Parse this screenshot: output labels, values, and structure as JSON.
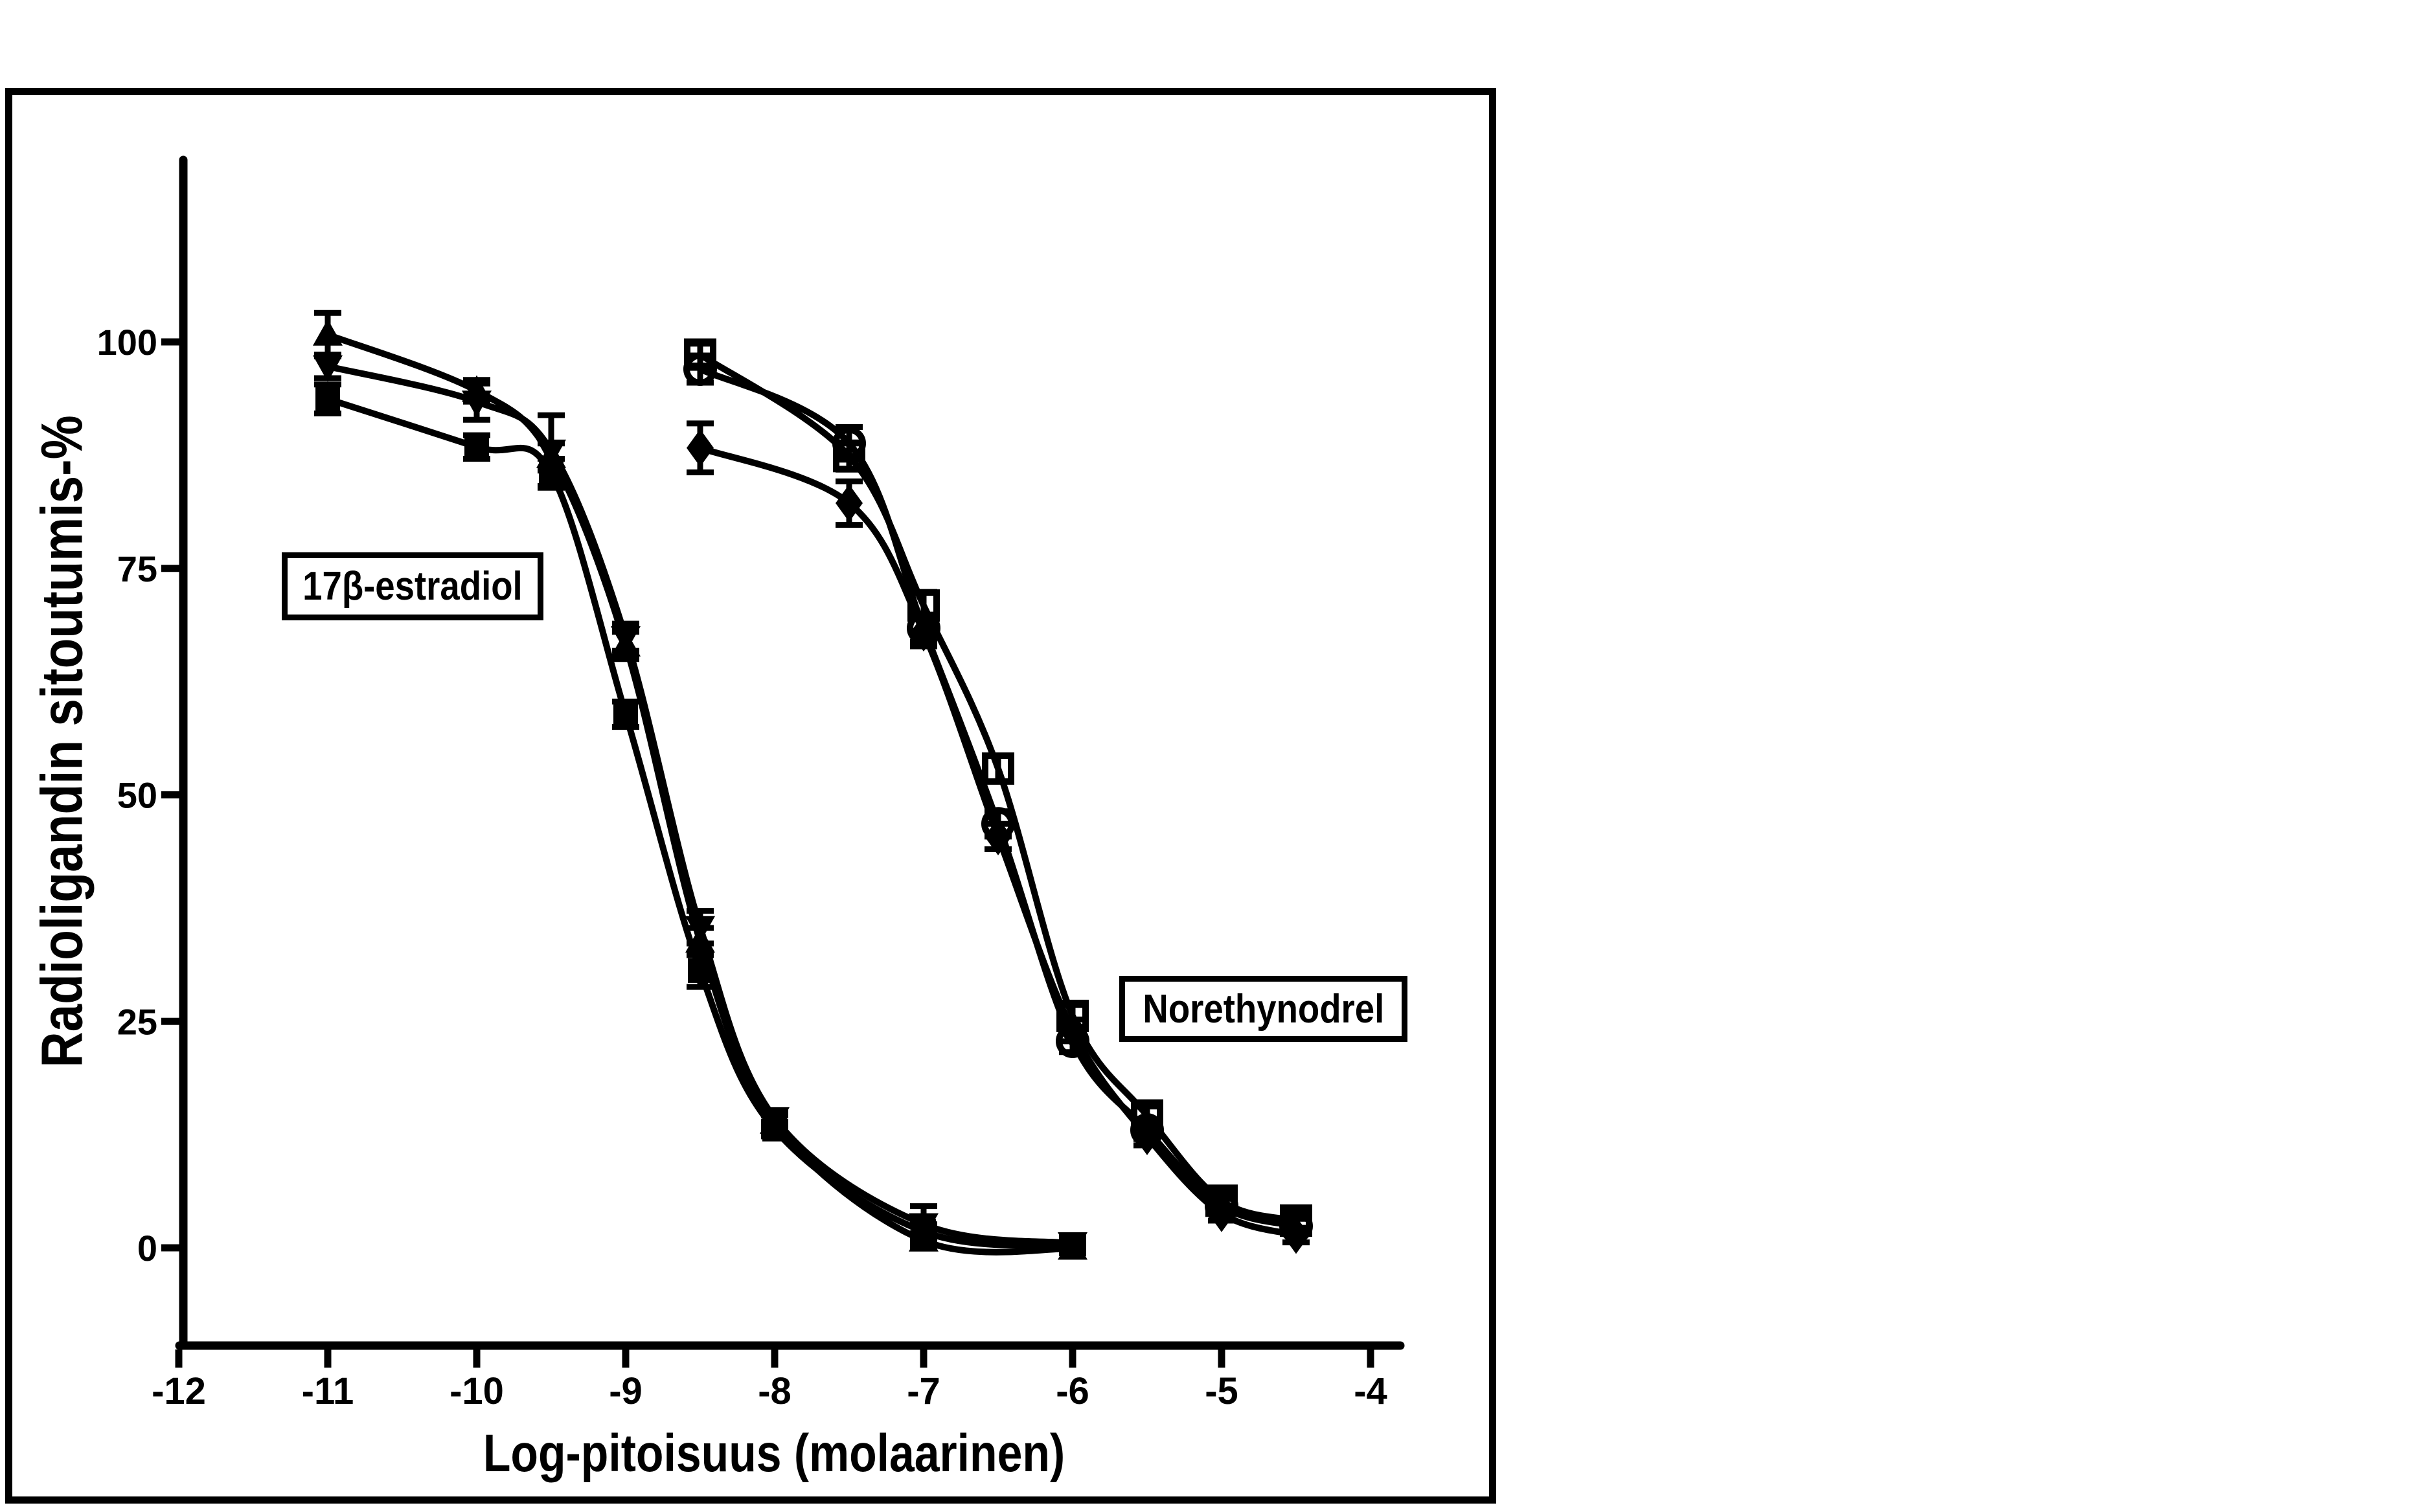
{
  "figure": {
    "background": "#ffffff",
    "ink_color": "#000000",
    "y_axis_title": "Radioligandin sitoutumis-%",
    "x_axis_title": "Log-pitoisuus (molaarinen)",
    "x_tick_labels": [
      "-12",
      "-11",
      "-10",
      "-9",
      "-8",
      "-7",
      "-6",
      "-5",
      "-4"
    ],
    "y_tick_labels": [
      "100",
      "75",
      "50",
      "25",
      "0"
    ],
    "annotations": [
      {
        "text": "17β-estradiol"
      },
      {
        "text": "Norethynodrel"
      }
    ]
  },
  "chart_data": {
    "type": "line",
    "title": "",
    "xlabel": "Log-pitoisuus (molaarinen)",
    "ylabel": "Radioligandin sitoutumis-%",
    "xlim": [
      -12,
      -4
    ],
    "ylim": [
      0,
      100
    ],
    "grid": false,
    "legend_position": "none (curve families labeled by boxed annotations)",
    "x_ticks": [
      -12,
      -11,
      -10,
      -9,
      -8,
      -7,
      -6,
      -5,
      -4
    ],
    "y_ticks": [
      100,
      75,
      50,
      25,
      0
    ],
    "groups": [
      {
        "label": "17β-estradiol",
        "x": [
          -11,
          -10,
          -9.5,
          -9,
          -8.5,
          -8,
          -7,
          -6
        ],
        "series": [
          {
            "marker": "filled-triangle-up",
            "y": [
              100.8,
              94.6,
              87.3,
              66.5,
              33.8,
              13.8,
              0.8,
              -0.1
            ],
            "err": [
              2.4,
              1.2,
              1.5,
              1.5,
              1.5,
              0.8,
              0.8,
              0.5
            ]
          },
          {
            "marker": "filled-triangle-down",
            "y": [
              97.3,
              93.4,
              88.0,
              67.4,
              35.4,
              14.3,
              2.6,
              0.5
            ],
            "err": [
              1.3,
              2.0,
              3.9,
              1.5,
              1.8,
              0.8,
              2.0,
              0.6
            ]
          },
          {
            "marker": "filled-square",
            "y": [
              93.7,
              88.4,
              85.5,
              58.9,
              30.6,
              13.1,
              1.8,
              0.2
            ],
            "err": [
              1.6,
              1.3,
              1.6,
              1.4,
              1.8,
              0.8,
              0.8,
              0.5
            ]
          }
        ]
      },
      {
        "label": "Norethynodrel",
        "x": [
          -8.5,
          -7.5,
          -7,
          -6.5,
          -6,
          -5.5,
          -5,
          -4.5
        ],
        "series": [
          {
            "marker": "open-square",
            "y": [
              98.6,
              87.4,
              70.9,
              52.9,
              25.6,
              14.6,
              5.2,
              3.0
            ],
            "err": [
              1.2,
              1.5,
              1.5,
              1.4,
              1.2,
              1.0,
              0.8,
              0.8
            ]
          },
          {
            "marker": "open-circle",
            "y": [
              97.0,
              88.8,
              68.4,
              46.8,
              22.8,
              13.0,
              4.6,
              2.4
            ],
            "err": [
              1.5,
              1.8,
              1.5,
              1.4,
              1.2,
              1.0,
              0.8,
              0.8
            ]
          },
          {
            "marker": "filled-diamond",
            "y": [
              88.3,
              82.2,
              67.9,
              45.4,
              24.0,
              12.3,
              3.8,
              1.4
            ],
            "err": [
              2.7,
              2.4,
              1.5,
              1.4,
              1.2,
              1.0,
              0.8,
              0.8
            ]
          }
        ]
      }
    ]
  }
}
